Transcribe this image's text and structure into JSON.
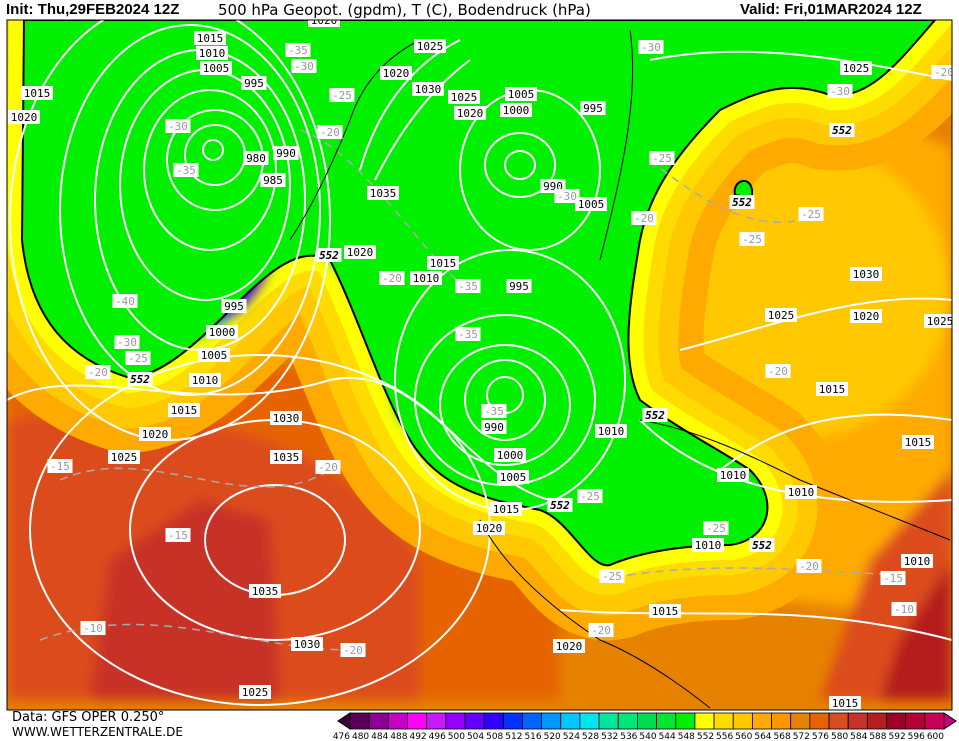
{
  "header": {
    "init": "Init: Thu,29FEB2024 12Z",
    "title": "500 hPa Geopot. (gpdm), T (C), Bodendruck (hPa)",
    "valid": "Valid: Fri,01MAR2024 12Z"
  },
  "footer": {
    "data_source": "Data: GFS OPER 0.250°",
    "website": "WWW.WETTERZENTRALE.DE"
  },
  "colorbar": {
    "labels": [
      "476",
      "480",
      "484",
      "488",
      "492",
      "496",
      "500",
      "504",
      "508",
      "512",
      "516",
      "520",
      "524",
      "528",
      "532",
      "536",
      "540",
      "544",
      "548",
      "552",
      "556",
      "560",
      "564",
      "568",
      "572",
      "576",
      "580",
      "584",
      "588",
      "592",
      "596",
      "600"
    ],
    "under_color": "#3c0032",
    "over_color": "#c8007a",
    "colors": [
      "#5a005a",
      "#8c0096",
      "#c800c8",
      "#ff00ff",
      "#c818ff",
      "#9600ff",
      "#6400ff",
      "#3200ff",
      "#0032ff",
      "#0064ff",
      "#0096ff",
      "#00c8ff",
      "#00e6f0",
      "#00e6a0",
      "#00e678",
      "#00dc50",
      "#00e632",
      "#00f000",
      "#ffff00",
      "#ffdc00",
      "#ffc800",
      "#ffaa00",
      "#ff9600",
      "#e68200",
      "#e66400",
      "#dc4b1e",
      "#c83228",
      "#b41e1e",
      "#a00028",
      "#b40032",
      "#c8005a"
    ]
  },
  "map": {
    "pressure_labels": [
      "1020",
      "1015",
      "1010",
      "1005",
      "995",
      "980",
      "990",
      "985",
      "1025",
      "1020",
      "1030",
      "1025",
      "1020",
      "1035",
      "1020",
      "1015",
      "1010",
      "995",
      "1000",
      "1005",
      "1010",
      "1015",
      "1020",
      "1015",
      "1020",
      "1025",
      "1030",
      "1035",
      "1035",
      "1030",
      "1025",
      "1005",
      "1000",
      "995",
      "990",
      "1005",
      "995",
      "1025",
      "1030",
      "1025",
      "1020",
      "1025",
      "990",
      "1000",
      "1005",
      "1015",
      "1020",
      "1010",
      "1010",
      "1010",
      "1015",
      "1015",
      "1010",
      "1010",
      "1015",
      "1020",
      "1015"
    ],
    "temperature_labels": [
      "-35",
      "-30",
      "-25",
      "-20",
      "-30",
      "-35",
      "-40",
      "-30",
      "-25",
      "-20",
      "-20",
      "-35",
      "-30",
      "-30",
      "-25",
      "-30",
      "-20",
      "-25",
      "-25",
      "-35",
      "-35",
      "-20",
      "-25",
      "-25",
      "-20",
      "-15",
      "-25",
      "-20",
      "-10",
      "-20",
      "-15",
      "-15",
      "-10",
      "-20",
      "-20"
    ],
    "geopotential_labels": [
      "552",
      "552",
      "552",
      "552",
      "552",
      "552",
      "552"
    ]
  }
}
